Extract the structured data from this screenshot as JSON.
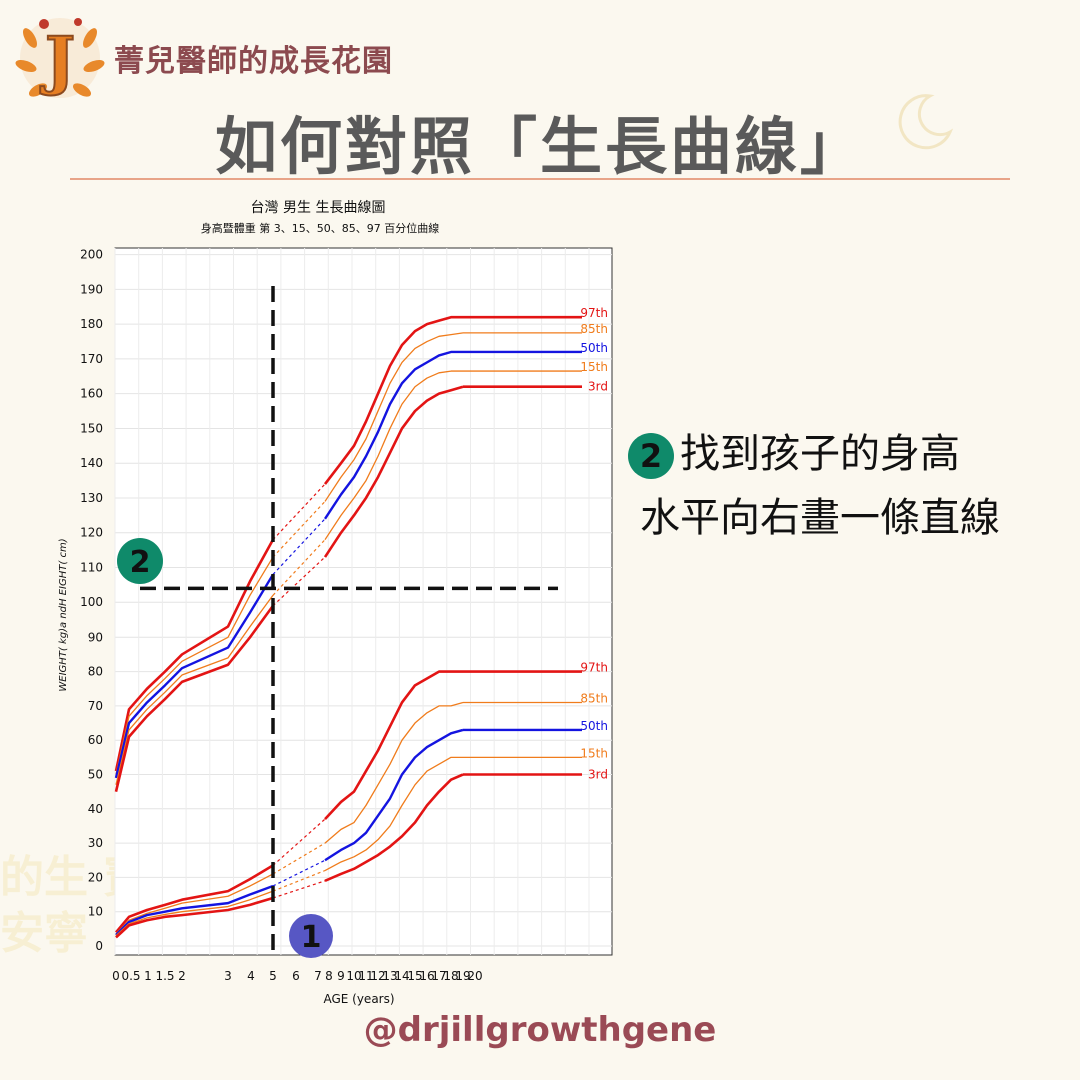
{
  "header": {
    "brand": "菁兒醫師的成長花園",
    "logo_letter": "J",
    "title": "如何對照「生長曲線」"
  },
  "instruction": {
    "step_badge": "2",
    "line1": "找到孩子的身高",
    "line2": "水平向右畫一條直線"
  },
  "footer": {
    "handle": "@drjillgrowthgene"
  },
  "background_ghost": {
    "line1": "的生   寶貴    的",
    "line2": "安寧"
  },
  "colors": {
    "p97": "#e31414",
    "p85": "#f07c1c",
    "p50": "#1414e0",
    "p15": "#f07c1c",
    "p3": "#e31414",
    "badge1": "#5757c4",
    "badge2": "#0f8a6a",
    "accent": "#8c4a4f"
  },
  "chart_data": {
    "type": "line",
    "title": "台灣 男生 生長曲線圖",
    "subtitle": "身高暨體重 第 3、15、50、85、97 百分位曲線",
    "xlabel": "AGE (years)",
    "ylabel": "WEIGHT( kg)a ndH EIGHT( cm)",
    "ylim": [
      0,
      200
    ],
    "y_ticks": [
      "0",
      "10",
      "20",
      "30",
      "40",
      "50",
      "60",
      "70",
      "80",
      "90",
      "100",
      "110",
      "120",
      "130",
      "140",
      "150",
      "160",
      "170",
      "180",
      "190",
      "200"
    ],
    "x_ticks": [
      "0",
      "0.5",
      "1",
      "1.5",
      "2",
      "3",
      "4",
      "5",
      "6",
      "7",
      "8",
      "9",
      "10",
      "11",
      "12",
      "13",
      "14",
      "15",
      "16",
      "17",
      "18",
      "19",
      "20"
    ],
    "grid": true,
    "height_series": [
      {
        "name": "97th",
        "key": "p97",
        "points": [
          [
            0,
            51
          ],
          [
            0.5,
            69
          ],
          [
            1,
            75
          ],
          [
            1.5,
            80
          ],
          [
            2,
            85
          ],
          [
            3,
            93
          ],
          [
            4,
            106
          ],
          [
            5,
            118
          ],
          [
            7.6,
            134
          ],
          [
            9,
            140
          ],
          [
            10,
            145
          ],
          [
            11,
            152
          ],
          [
            12,
            160
          ],
          [
            13,
            168
          ],
          [
            14,
            174
          ],
          [
            15,
            178
          ],
          [
            16,
            180
          ],
          [
            17,
            181
          ],
          [
            18,
            182
          ],
          [
            19,
            182
          ]
        ]
      },
      {
        "name": "85th",
        "key": "p85",
        "points": [
          [
            0,
            50
          ],
          [
            0.5,
            67
          ],
          [
            1,
            73
          ],
          [
            1.5,
            78
          ],
          [
            2,
            83
          ],
          [
            3,
            90
          ],
          [
            4,
            102
          ],
          [
            5,
            113
          ],
          [
            7.6,
            129
          ],
          [
            9,
            136
          ],
          [
            10,
            141
          ],
          [
            11,
            147
          ],
          [
            12,
            155
          ],
          [
            13,
            163
          ],
          [
            14,
            169
          ],
          [
            15,
            173
          ],
          [
            16,
            175
          ],
          [
            17,
            176.5
          ],
          [
            18,
            177
          ],
          [
            19,
            177.5
          ]
        ]
      },
      {
        "name": "50th",
        "key": "p50",
        "points": [
          [
            0,
            49
          ],
          [
            0.5,
            65
          ],
          [
            1,
            71
          ],
          [
            1.5,
            76
          ],
          [
            2,
            81
          ],
          [
            3,
            87
          ],
          [
            4,
            97
          ],
          [
            5,
            108
          ],
          [
            7.6,
            124
          ],
          [
            9,
            131
          ],
          [
            10,
            136
          ],
          [
            11,
            142
          ],
          [
            12,
            149
          ],
          [
            13,
            157
          ],
          [
            14,
            163
          ],
          [
            15,
            167
          ],
          [
            16,
            169
          ],
          [
            17,
            171
          ],
          [
            18,
            172
          ],
          [
            19,
            172
          ]
        ]
      },
      {
        "name": "15th",
        "key": "p15",
        "points": [
          [
            0,
            47
          ],
          [
            0.5,
            63
          ],
          [
            1,
            69
          ],
          [
            1.5,
            74
          ],
          [
            2,
            79
          ],
          [
            3,
            84
          ],
          [
            4,
            93
          ],
          [
            5,
            102
          ],
          [
            7.6,
            118
          ],
          [
            9,
            125
          ],
          [
            10,
            130
          ],
          [
            11,
            135
          ],
          [
            12,
            142
          ],
          [
            13,
            150
          ],
          [
            14,
            157
          ],
          [
            15,
            162
          ],
          [
            16,
            164.5
          ],
          [
            17,
            166
          ],
          [
            18,
            166.5
          ],
          [
            19,
            166.5
          ]
        ]
      },
      {
        "name": "3rd",
        "key": "p3",
        "points": [
          [
            0,
            45
          ],
          [
            0.5,
            61
          ],
          [
            1,
            67
          ],
          [
            1.5,
            72
          ],
          [
            2,
            77
          ],
          [
            3,
            82
          ],
          [
            4,
            90
          ],
          [
            5,
            99
          ],
          [
            7.6,
            113
          ],
          [
            9,
            120
          ],
          [
            10,
            125
          ],
          [
            11,
            130
          ],
          [
            12,
            136
          ],
          [
            13,
            143
          ],
          [
            14,
            150
          ],
          [
            15,
            155
          ],
          [
            16,
            158
          ],
          [
            17,
            160
          ],
          [
            18,
            161
          ],
          [
            19,
            162
          ]
        ]
      }
    ],
    "weight_series": [
      {
        "name": "97th",
        "key": "p97",
        "points": [
          [
            0,
            4
          ],
          [
            0.5,
            8.5
          ],
          [
            1,
            10.5
          ],
          [
            1.5,
            12
          ],
          [
            2,
            13.5
          ],
          [
            3,
            16
          ],
          [
            4,
            19.5
          ],
          [
            5,
            23.5
          ],
          [
            7.6,
            37
          ],
          [
            9,
            42
          ],
          [
            10,
            45
          ],
          [
            11,
            51
          ],
          [
            12,
            57
          ],
          [
            13,
            64
          ],
          [
            14,
            71
          ],
          [
            15,
            76
          ],
          [
            16,
            78
          ],
          [
            17,
            80
          ],
          [
            18,
            80
          ],
          [
            19,
            80
          ]
        ]
      },
      {
        "name": "85th",
        "key": "p85",
        "points": [
          [
            0,
            3.5
          ],
          [
            0.5,
            7.5
          ],
          [
            1,
            9.5
          ],
          [
            1.5,
            11
          ],
          [
            2,
            12.5
          ],
          [
            3,
            14.5
          ],
          [
            4,
            17.5
          ],
          [
            5,
            21
          ],
          [
            7.6,
            30
          ],
          [
            9,
            34
          ],
          [
            10,
            36
          ],
          [
            11,
            41
          ],
          [
            12,
            47
          ],
          [
            13,
            53
          ],
          [
            14,
            60
          ],
          [
            15,
            65
          ],
          [
            16,
            68
          ],
          [
            17,
            70
          ],
          [
            18,
            70
          ],
          [
            19,
            71
          ]
        ]
      },
      {
        "name": "50th",
        "key": "p50",
        "points": [
          [
            0,
            3.2
          ],
          [
            0.5,
            7
          ],
          [
            1,
            9
          ],
          [
            1.5,
            10
          ],
          [
            2,
            11
          ],
          [
            3,
            12.5
          ],
          [
            4,
            15
          ],
          [
            5,
            17.5
          ],
          [
            7.6,
            25
          ],
          [
            9,
            28
          ],
          [
            10,
            30
          ],
          [
            11,
            33
          ],
          [
            12,
            38
          ],
          [
            13,
            43
          ],
          [
            14,
            50
          ],
          [
            15,
            55
          ],
          [
            16,
            58
          ],
          [
            17,
            60
          ],
          [
            18,
            62
          ],
          [
            19,
            63
          ]
        ]
      },
      {
        "name": "15th",
        "key": "p15",
        "points": [
          [
            0,
            3
          ],
          [
            0.5,
            6.5
          ],
          [
            1,
            8.2
          ],
          [
            1.5,
            9.2
          ],
          [
            2,
            10
          ],
          [
            3,
            11.5
          ],
          [
            4,
            13.5
          ],
          [
            5,
            16
          ],
          [
            7.6,
            22
          ],
          [
            9,
            24.5
          ],
          [
            10,
            26
          ],
          [
            11,
            28
          ],
          [
            12,
            31
          ],
          [
            13,
            35
          ],
          [
            14,
            41
          ],
          [
            15,
            47
          ],
          [
            16,
            51
          ],
          [
            17,
            53
          ],
          [
            18,
            55
          ],
          [
            19,
            55
          ]
        ]
      },
      {
        "name": "3rd",
        "key": "p3",
        "points": [
          [
            0,
            2.5
          ],
          [
            0.5,
            6
          ],
          [
            1,
            7.5
          ],
          [
            1.5,
            8.5
          ],
          [
            2,
            9
          ],
          [
            3,
            10.5
          ],
          [
            4,
            12
          ],
          [
            5,
            14
          ],
          [
            7.6,
            19
          ],
          [
            9,
            21
          ],
          [
            10,
            22.5
          ],
          [
            11,
            24.5
          ],
          [
            12,
            26.5
          ],
          [
            13,
            29
          ],
          [
            14,
            32
          ],
          [
            15,
            36
          ],
          [
            16,
            41
          ],
          [
            17,
            45
          ],
          [
            18,
            48.5
          ],
          [
            19,
            50
          ]
        ]
      }
    ],
    "annotations": [
      {
        "type": "vertical-dashed-line",
        "x": 5,
        "label": "1"
      },
      {
        "type": "horizontal-dashed-line",
        "y": 104,
        "label": "2"
      }
    ]
  }
}
